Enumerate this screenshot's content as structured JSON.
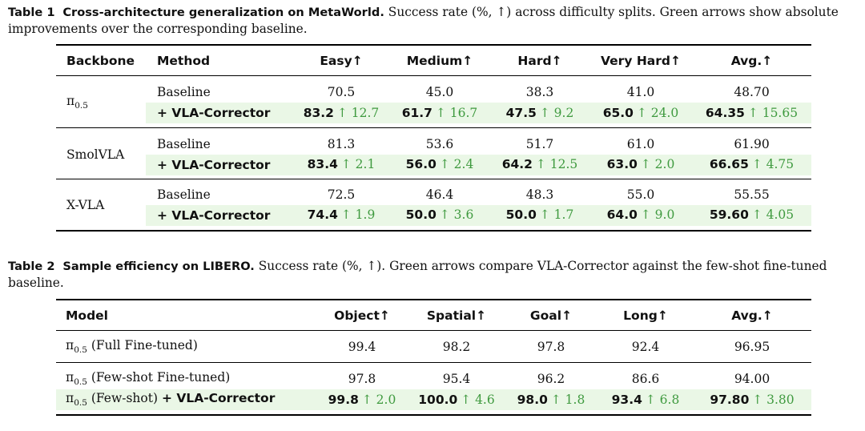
{
  "table1": {
    "label": "Table 1",
    "title": "Cross-architecture generalization on MetaWorld.",
    "caption": "Success rate (%, ↑) across difficulty splits. Green arrows show absolute improvements over the corresponding baseline.",
    "headers": [
      "Backbone",
      "Method",
      "Easy↑",
      "Medium↑",
      "Hard↑",
      "Very Hard↑",
      "Avg.↑"
    ],
    "groups": [
      {
        "backbone_base": "π",
        "backbone_sub": "0.5",
        "baseline_label": "Baseline",
        "baseline": [
          "70.5",
          "45.0",
          "38.3",
          "41.0",
          "48.70"
        ],
        "corrector_label": "+ VLA-Corrector",
        "corrector": [
          "83.2",
          "61.7",
          "47.5",
          "65.0",
          "64.35"
        ],
        "gains": [
          "↑ 12.7",
          "↑ 16.7",
          "↑ 9.2",
          "↑ 24.0",
          "↑ 15.65"
        ]
      },
      {
        "backbone": "SmolVLA",
        "baseline_label": "Baseline",
        "baseline": [
          "81.3",
          "53.6",
          "51.7",
          "61.0",
          "61.90"
        ],
        "corrector_label": "+ VLA-Corrector",
        "corrector": [
          "83.4",
          "56.0",
          "64.2",
          "63.0",
          "66.65"
        ],
        "gains": [
          "↑ 2.1",
          "↑ 2.4",
          "↑ 12.5",
          "↑ 2.0",
          "↑ 4.75"
        ]
      },
      {
        "backbone": "X-VLA",
        "baseline_label": "Baseline",
        "baseline": [
          "72.5",
          "46.4",
          "48.3",
          "55.0",
          "55.55"
        ],
        "corrector_label": "+ VLA-Corrector",
        "corrector": [
          "74.4",
          "50.0",
          "50.0",
          "64.0",
          "59.60"
        ],
        "gains": [
          "↑ 1.9",
          "↑ 3.6",
          "↑ 1.7",
          "↑ 9.0",
          "↑ 4.05"
        ]
      }
    ]
  },
  "table2": {
    "label": "Table 2",
    "title": "Sample efficiency on LIBERO.",
    "caption": "Success rate (%, ↑). Green arrows compare VLA-Corrector against the few-shot fine-tuned baseline.",
    "headers": [
      "Model",
      "Object↑",
      "Spatial↑",
      "Goal↑",
      "Long↑",
      "Avg.↑"
    ],
    "rows": [
      {
        "model_base": "π",
        "model_sub": "0.5",
        "model_rest": "(Full Fine-tuned)",
        "values": [
          "99.4",
          "98.2",
          "97.8",
          "92.4",
          "96.95"
        ]
      },
      {
        "model_base": "π",
        "model_sub": "0.5",
        "model_rest": "(Few-shot Fine-tuned)",
        "values": [
          "97.8",
          "95.4",
          "96.2",
          "86.6",
          "94.00"
        ]
      },
      {
        "model_base": "π",
        "model_sub": "0.5",
        "model_rest": "(Few-shot)",
        "model_suffix": "+ VLA-Corrector",
        "values": [
          "99.8",
          "100.0",
          "98.0",
          "93.4",
          "97.80"
        ],
        "gains": [
          "↑ 2.0",
          "↑ 4.6",
          "↑ 1.8",
          "↑ 6.8",
          "↑ 3.80"
        ]
      }
    ]
  },
  "colors": {
    "highlight_bg": "#eaf7e6",
    "gain_text": "#3f9a3f"
  }
}
